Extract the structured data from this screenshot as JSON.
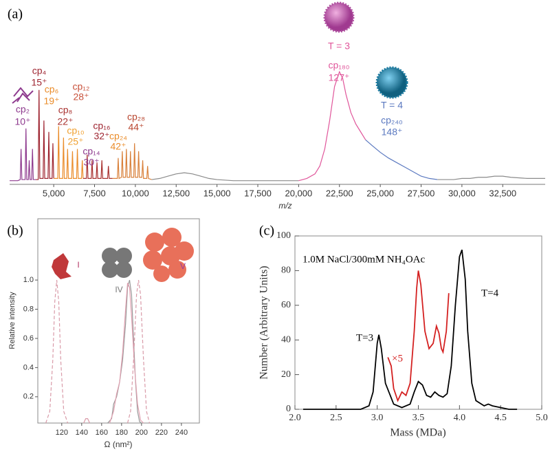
{
  "chart_data": [
    {
      "type": "line",
      "panel": "(a)",
      "x_label": "m/z",
      "xlim": [
        2300,
        35100
      ],
      "xticks": [
        {
          "value": 5000,
          "label": "5,000"
        },
        {
          "value": 7500,
          "label": "7,500"
        },
        {
          "value": 10000,
          "label": "10,000"
        },
        {
          "value": 12500,
          "label": "12,500"
        },
        {
          "value": 15000,
          "label": "15,000"
        },
        {
          "value": 17500,
          "label": "17,500"
        },
        {
          "value": 20000,
          "label": "20,000"
        },
        {
          "value": 22500,
          "label": "22,500"
        },
        {
          "value": 25000,
          "label": "25,000"
        },
        {
          "value": 27500,
          "label": "27,500"
        },
        {
          "value": 30000,
          "label": "30,000"
        },
        {
          "value": 32500,
          "label": "32,500"
        }
      ],
      "series": [
        {
          "color": "#8e3a8e",
          "x": [
            2300,
            2800,
            2950,
            3000,
            3050,
            3250,
            3300,
            3350,
            3450,
            3500,
            3550,
            3650,
            3700,
            3750,
            3900
          ],
          "values": [
            0.02,
            0.02,
            0.03,
            0.3,
            0.03,
            0.03,
            0.48,
            0.03,
            0.03,
            0.2,
            0.03,
            0.03,
            0.3,
            0.03,
            0.03
          ]
        },
        {
          "color": "#9e2430",
          "x": [
            3900,
            4050,
            4100,
            4150,
            4350,
            4400,
            4450,
            4650,
            4700,
            4750,
            4900,
            4950,
            5000
          ],
          "values": [
            0.03,
            0.03,
            0.82,
            0.04,
            0.04,
            0.55,
            0.04,
            0.04,
            0.45,
            0.04,
            0.04,
            0.35,
            0.04
          ]
        },
        {
          "color": "#ea8c2a",
          "x": [
            5000,
            5250,
            5300,
            5350,
            5550,
            5600,
            5650,
            5800,
            5850,
            5900,
            6100,
            6150,
            6200,
            6400,
            6450,
            6500,
            6700,
            6750,
            6800
          ],
          "values": [
            0.04,
            0.04,
            0.5,
            0.04,
            0.04,
            0.4,
            0.04,
            0.04,
            0.3,
            0.04,
            0.04,
            0.28,
            0.04,
            0.04,
            0.3,
            0.04,
            0.04,
            0.2,
            0.04
          ]
        },
        {
          "color": "#a8302e",
          "x": [
            6800,
            7000,
            7050,
            7100,
            7300,
            7350,
            7400,
            7600,
            7650,
            7700,
            7900,
            7950,
            8000,
            8300,
            8350,
            8400,
            8600
          ],
          "values": [
            0.04,
            0.04,
            0.25,
            0.04,
            0.04,
            0.2,
            0.04,
            0.04,
            0.18,
            0.04,
            0.04,
            0.2,
            0.04,
            0.04,
            0.15,
            0.04,
            0.04
          ]
        },
        {
          "color": "#d9803a",
          "x": [
            8600,
            8900,
            8950,
            9000,
            9150,
            9200,
            9250,
            9400,
            9450,
            9500,
            9650,
            9700,
            9750,
            9900,
            9950,
            10000,
            10150,
            10200,
            10250,
            10400,
            10450,
            10500,
            10700,
            10750,
            10800,
            11000
          ],
          "values": [
            0.04,
            0.04,
            0.22,
            0.04,
            0.05,
            0.28,
            0.05,
            0.05,
            0.3,
            0.05,
            0.05,
            0.28,
            0.05,
            0.05,
            0.35,
            0.05,
            0.05,
            0.28,
            0.05,
            0.05,
            0.2,
            0.04,
            0.04,
            0.15,
            0.04,
            0.03
          ]
        },
        {
          "color": "#8a8a8a",
          "x": [
            11000,
            11500,
            12000,
            12500,
            13000,
            13500,
            14000,
            14500,
            15000,
            16000,
            17000,
            18000,
            19000,
            20000
          ],
          "values": [
            0.03,
            0.04,
            0.06,
            0.08,
            0.09,
            0.08,
            0.06,
            0.04,
            0.03,
            0.02,
            0.02,
            0.02,
            0.02,
            0.02
          ]
        },
        {
          "color": "#e0559a",
          "x": [
            20000,
            20500,
            21000,
            21300,
            21600,
            21900,
            22200,
            22500,
            22700,
            22900,
            23200,
            23500,
            23800,
            24100
          ],
          "values": [
            0.02,
            0.04,
            0.08,
            0.15,
            0.3,
            0.55,
            0.85,
            0.98,
            0.92,
            0.78,
            0.62,
            0.52,
            0.45,
            0.38
          ]
        },
        {
          "color": "#5b79c0",
          "x": [
            24100,
            24500,
            25000,
            25500,
            26000,
            26500,
            27000,
            27500,
            28000,
            28500
          ],
          "values": [
            0.38,
            0.33,
            0.27,
            0.22,
            0.18,
            0.14,
            0.1,
            0.06,
            0.04,
            0.03
          ]
        },
        {
          "color": "#8a8a8a",
          "x": [
            28500,
            29000,
            29500,
            30000,
            30500,
            31000,
            31500,
            32000,
            32500,
            33000,
            34000,
            35100
          ],
          "values": [
            0.03,
            0.03,
            0.03,
            0.04,
            0.04,
            0.05,
            0.05,
            0.06,
            0.06,
            0.05,
            0.04,
            0.04
          ]
        }
      ],
      "annotations": [
        {
          "text": "cp₂",
          "color": "#8e3a8e"
        },
        {
          "text": "10⁺",
          "color": "#8e3a8e"
        },
        {
          "text": "cp₄",
          "color": "#9e2430"
        },
        {
          "text": "15⁺",
          "color": "#9e2430"
        },
        {
          "text": "cp₆",
          "color": "#ea8c2a"
        },
        {
          "text": "19⁺",
          "color": "#ea8c2a"
        },
        {
          "text": "cp₈",
          "color": "#a8302e"
        },
        {
          "text": "22⁺",
          "color": "#a8302e"
        },
        {
          "text": "cp₁₀",
          "color": "#f0a030"
        },
        {
          "text": "25⁺",
          "color": "#f0a030"
        },
        {
          "text": "cp₁₂",
          "color": "#c8503a"
        },
        {
          "text": "28⁺",
          "color": "#c8503a"
        },
        {
          "text": "cp₁₄",
          "color": "#8e3a8e"
        },
        {
          "text": "30⁺",
          "color": "#8e3a8e"
        },
        {
          "text": "cp₁₆",
          "color": "#9e2430"
        },
        {
          "text": "32⁺",
          "color": "#9e2430"
        },
        {
          "text": "cp₂₄",
          "color": "#ea8c2a"
        },
        {
          "text": "42⁺",
          "color": "#ea8c2a"
        },
        {
          "text": "cp₂₈",
          "color": "#b8452e"
        },
        {
          "text": "44⁺",
          "color": "#b8452e"
        },
        {
          "text": "T = 3",
          "color": "#e0559a"
        },
        {
          "text": "cp₁₈₀",
          "color": "#e0559a"
        },
        {
          "text": "127⁺",
          "color": "#e0559a"
        },
        {
          "text": "T = 4",
          "color": "#5b79c0"
        },
        {
          "text": "cp₂₄₀",
          "color": "#5b79c0"
        },
        {
          "text": "148⁺",
          "color": "#5b79c0"
        }
      ]
    },
    {
      "type": "line",
      "panel": "(b)",
      "x_label": "Ω (nm²)",
      "y_label": "Relative intensity",
      "xlim": [
        96,
        258
      ],
      "ylim": [
        0.02,
        1.42
      ],
      "xticks": [
        120,
        140,
        160,
        180,
        200,
        220,
        240
      ],
      "yticks": [
        0.2,
        0.4,
        0.6,
        0.8,
        {
          "value": 1,
          "label": "1.0"
        }
      ],
      "series": [
        {
          "color": "#d99aa8",
          "dashed": true,
          "x": [
            104,
            108,
            111,
            113,
            115,
            117,
            119,
            122,
            126
          ],
          "values": [
            0.02,
            0.1,
            0.45,
            0.85,
            1.0,
            0.85,
            0.45,
            0.1,
            0.02
          ]
        },
        {
          "color": "#d99aa8",
          "x": [
            142,
            144,
            146,
            148
          ],
          "values": [
            0.02,
            0.05,
            0.05,
            0.02
          ]
        },
        {
          "color": "#999999",
          "x": [
            166,
            170,
            172,
            175,
            178,
            181,
            184,
            186,
            188,
            190,
            192,
            194,
            196,
            198,
            200
          ],
          "values": [
            0.02,
            0.05,
            0.15,
            0.2,
            0.3,
            0.45,
            0.7,
            0.95,
            1.0,
            0.9,
            0.6,
            0.3,
            0.1,
            0.03,
            0.02
          ]
        },
        {
          "color": "#e0a0b0",
          "x": [
            168,
            172,
            175,
            178,
            181,
            184,
            186,
            188,
            190,
            193,
            196,
            199,
            202
          ],
          "values": [
            0.02,
            0.1,
            0.22,
            0.3,
            0.5,
            0.8,
            0.98,
            0.95,
            0.75,
            0.4,
            0.15,
            0.04,
            0.02
          ]
        },
        {
          "color": "#d99aa8",
          "dashed": true,
          "x": [
            186,
            189,
            192,
            195,
            197,
            199,
            202,
            205,
            208
          ],
          "values": [
            0.02,
            0.1,
            0.45,
            0.9,
            1.0,
            0.9,
            0.45,
            0.1,
            0.02
          ]
        }
      ],
      "annotations": [
        {
          "text": "I",
          "color": "#b03060"
        },
        {
          "text": "IV",
          "color": "#777777"
        },
        {
          "text": "V",
          "color": "#9a3aa0"
        }
      ]
    },
    {
      "type": "line",
      "panel": "(c)",
      "x_label": "Mass (MDa)",
      "y_label": "Number (Arbitrary Units)",
      "xlim": [
        2,
        5
      ],
      "ylim": [
        0,
        100
      ],
      "xticks": [
        {
          "value": 2,
          "label": "2.0"
        },
        2.5,
        {
          "value": 3,
          "label": "3.0"
        },
        3.5,
        {
          "value": 4,
          "label": "4.0"
        },
        4.5,
        {
          "value": 5,
          "label": "5.0"
        }
      ],
      "yticks": [
        0,
        20,
        40,
        60,
        80,
        100
      ],
      "series": [
        {
          "color": "#000000",
          "x": [
            2.1,
            2.8,
            2.9,
            2.95,
            3.0,
            3.02,
            3.05,
            3.1,
            3.2,
            3.3,
            3.4,
            3.45,
            3.5,
            3.55,
            3.6,
            3.65,
            3.7,
            3.75,
            3.8,
            3.85,
            3.9,
            3.95,
            4.0,
            4.03,
            4.07,
            4.1,
            4.15,
            4.2,
            4.3,
            4.35,
            4.4,
            4.5,
            4.6,
            4.7
          ],
          "values": [
            0,
            0,
            2,
            10,
            38,
            43,
            35,
            15,
            3,
            1,
            3,
            10,
            16,
            14,
            8,
            7,
            10,
            8,
            7,
            9,
            25,
            60,
            88,
            92,
            75,
            45,
            15,
            5,
            2,
            3,
            2,
            1,
            0,
            0
          ]
        },
        {
          "color": "#d42020",
          "x": [
            3.13,
            3.17,
            3.2,
            3.25,
            3.3,
            3.35,
            3.4,
            3.45,
            3.48,
            3.5,
            3.53,
            3.58,
            3.63,
            3.68,
            3.72,
            3.75,
            3.78,
            3.8,
            3.84,
            3.87
          ],
          "values": [
            30,
            25,
            12,
            5,
            10,
            8,
            15,
            45,
            70,
            80,
            72,
            45,
            35,
            38,
            48,
            44,
            35,
            33,
            45,
            67
          ]
        }
      ],
      "annotations": [
        {
          "text": "1.0M NaCl/300mM NH₄OAc",
          "color": "#000000"
        },
        {
          "text": "T=3",
          "color": "#000000"
        },
        {
          "text": "T=4",
          "color": "#000000"
        },
        {
          "text": "×5",
          "color": "#d42020"
        }
      ]
    }
  ]
}
